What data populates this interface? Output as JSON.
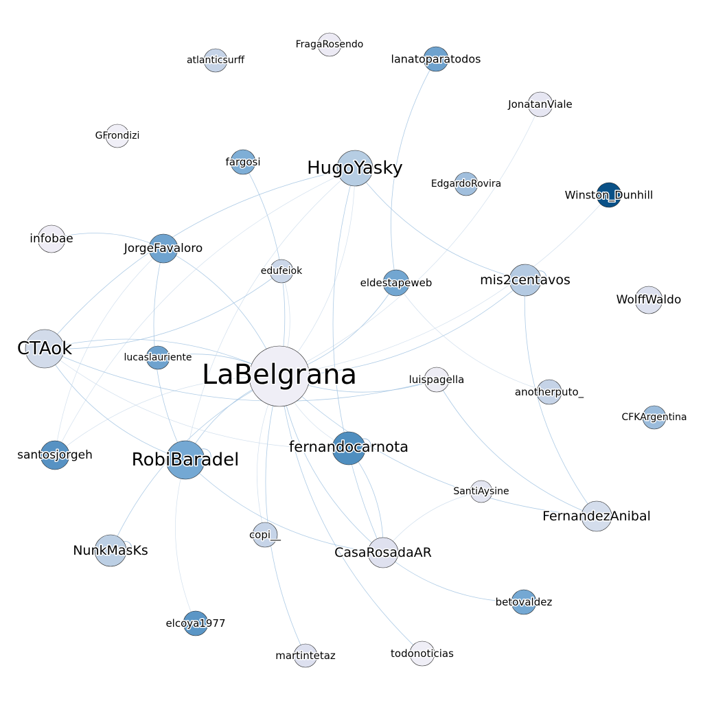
{
  "nodes": [
    {
      "id": "LaBelgrana",
      "label": "LaBelgrana",
      "color": "#efeef6"
    },
    {
      "id": "HugoYasky",
      "label": "HugoYasky",
      "color": "#b6cde3"
    },
    {
      "id": "CTAok",
      "label": "CTAok",
      "color": "#d2dbea"
    },
    {
      "id": "RobiBaradel",
      "label": "RobiBaradel",
      "color": "#74a8d3"
    },
    {
      "id": "fernandocarnota",
      "label": "fernandocarnota",
      "color": "#4f8ebf"
    },
    {
      "id": "mis2centavos",
      "label": "mis2centavos",
      "color": "#b4cae2"
    },
    {
      "id": "JorgeFavaloro",
      "label": "JorgeFavaloro",
      "color": "#6fa3cf"
    },
    {
      "id": "santosjorgeh",
      "label": "santosjorgeh",
      "color": "#5792c3"
    },
    {
      "id": "NunkMasKs",
      "label": "NunkMasKs",
      "color": "#bccfe4"
    },
    {
      "id": "CasaRosadaAR",
      "label": "CasaRosadaAR",
      "color": "#dfe1ef"
    },
    {
      "id": "FernandezAnibal",
      "label": "FernandezAnibal",
      "color": "#d4ddec"
    },
    {
      "id": "Winston_Dunhill",
      "label": "Winston_Dunhill",
      "color": "#0a5187"
    },
    {
      "id": "lanatoparatodos",
      "label": "lanatoparatodos",
      "color": "#6ea2ce"
    },
    {
      "id": "eldestapeweb",
      "label": "eldestapeweb",
      "color": "#72a6d1"
    },
    {
      "id": "fargosi",
      "label": "fargosi",
      "color": "#7eaed6"
    },
    {
      "id": "edufeiok",
      "label": "edufeiok",
      "color": "#cbd7e9"
    },
    {
      "id": "lucaslauriente",
      "label": "lucaslauriente",
      "color": "#6ea2ce"
    },
    {
      "id": "luispagella",
      "label": "luispagella",
      "color": "#eeedf5"
    },
    {
      "id": "anotherputo_",
      "label": "anotherputo_",
      "color": "#c5d3e7"
    },
    {
      "id": "CFKArgentina",
      "label": "CFKArgentina",
      "color": "#9bbcdc"
    },
    {
      "id": "SantiAysine",
      "label": "SantiAysine",
      "color": "#e3e5f1"
    },
    {
      "id": "betovaldez",
      "label": "betovaldez",
      "color": "#74a8d3"
    },
    {
      "id": "copi__",
      "label": "copi__",
      "color": "#c6d4e8"
    },
    {
      "id": "elcoya1977",
      "label": "elcoya1977",
      "color": "#5b96c6"
    },
    {
      "id": "martintetaz",
      "label": "martintetaz",
      "color": "#dde0ef"
    },
    {
      "id": "todonoticias",
      "label": "todonoticias",
      "color": "#efeef6"
    },
    {
      "id": "infobae",
      "label": "infobae",
      "color": "#eeecf5"
    },
    {
      "id": "GFrondizi",
      "label": "GFrondizi",
      "color": "#f0eff7"
    },
    {
      "id": "atlanticsurff",
      "label": "atlanticsurff",
      "color": "#c5d3e7"
    },
    {
      "id": "FragaRosendo",
      "label": "FragaRosendo",
      "color": "#eceaf4"
    },
    {
      "id": "JonatanViale",
      "label": "JonatanViale",
      "color": "#e6e6f2"
    },
    {
      "id": "EdgardoRovira",
      "label": "EdgardoRovira",
      "color": "#a1bfdd"
    },
    {
      "id": "WolffWaldo",
      "label": "WolffWaldo",
      "color": "#dde1ef"
    }
  ],
  "edges": [
    [
      "LaBelgrana",
      "HugoYasky"
    ],
    [
      "LaBelgrana",
      "CTAok"
    ],
    [
      "LaBelgrana",
      "RobiBaradel"
    ],
    [
      "LaBelgrana",
      "fernandocarnota"
    ],
    [
      "LaBelgrana",
      "mis2centavos"
    ],
    [
      "LaBelgrana",
      "JorgeFavaloro"
    ],
    [
      "LaBelgrana",
      "santosjorgeh"
    ],
    [
      "LaBelgrana",
      "NunkMasKs"
    ],
    [
      "LaBelgrana",
      "CasaRosadaAR"
    ],
    [
      "LaBelgrana",
      "Winston_Dunhill"
    ],
    [
      "LaBelgrana",
      "eldestapeweb"
    ],
    [
      "LaBelgrana",
      "fargosi"
    ],
    [
      "LaBelgrana",
      "edufeiok"
    ],
    [
      "LaBelgrana",
      "lucaslauriente"
    ],
    [
      "LaBelgrana",
      "luispagella"
    ],
    [
      "LaBelgrana",
      "copi__"
    ],
    [
      "LaBelgrana",
      "martintetaz"
    ],
    [
      "LaBelgrana",
      "todonoticias"
    ],
    [
      "LaBelgrana",
      "JonatanViale"
    ],
    [
      "LaBelgrana",
      "FernandezAnibal"
    ],
    [
      "HugoYasky",
      "CTAok"
    ],
    [
      "HugoYasky",
      "RobiBaradel"
    ],
    [
      "HugoYasky",
      "mis2centavos"
    ],
    [
      "HugoYasky",
      "CasaRosadaAR"
    ],
    [
      "HugoYasky",
      "santosjorgeh"
    ],
    [
      "CTAok",
      "RobiBaradel"
    ],
    [
      "CTAok",
      "luispagella"
    ],
    [
      "CTAok",
      "fernandocarnota"
    ],
    [
      "CTAok",
      "edufeiok"
    ],
    [
      "JorgeFavaloro",
      "infobae"
    ],
    [
      "JorgeFavaloro",
      "santosjorgeh"
    ],
    [
      "JorgeFavaloro",
      "RobiBaradel"
    ],
    [
      "lanatoparatodos",
      "eldestapeweb"
    ],
    [
      "eldestapeweb",
      "anotherputo_"
    ],
    [
      "mis2centavos",
      "FernandezAnibal"
    ],
    [
      "luispagella",
      "FernandezAnibal"
    ],
    [
      "SantiAysine",
      "CasaRosadaAR"
    ],
    [
      "CasaRosadaAR",
      "betovaldez"
    ],
    [
      "CasaRosadaAR",
      "fernandocarnota"
    ],
    [
      "RobiBaradel",
      "elcoya1977"
    ],
    [
      "RobiBaradel",
      "CasaRosadaAR"
    ]
  ],
  "self_loops": [
    "RobiBaradel",
    "fernandocarnota",
    "NunkMasKs",
    "mis2centavos"
  ]
}
